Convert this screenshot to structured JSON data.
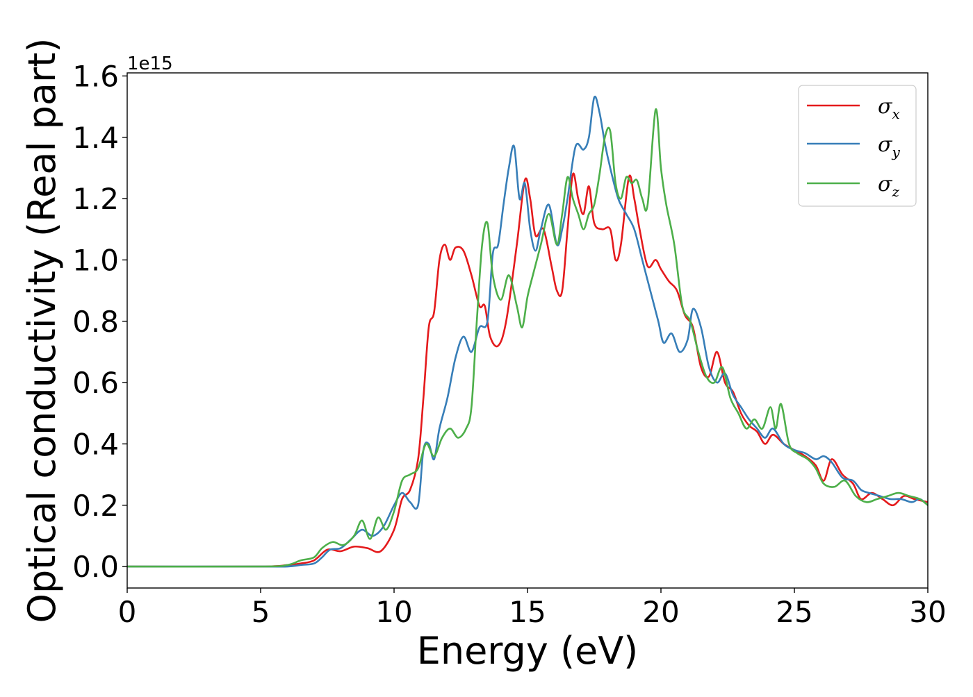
{
  "chart_data": {
    "type": "line",
    "xlabel": "Energy (eV)",
    "ylabel": "Optical conductivity (Real part)",
    "y_offset_text": "1e15",
    "xlim": [
      0,
      30
    ],
    "ylim": [
      -0.07,
      1.61
    ],
    "xticks": [
      0,
      5,
      10,
      15,
      20,
      25,
      30
    ],
    "xtick_labels": [
      "0",
      "5",
      "10",
      "15",
      "20",
      "25",
      "30"
    ],
    "yticks": [
      0.0,
      0.2,
      0.4,
      0.6,
      0.8,
      1.0,
      1.2,
      1.4,
      1.6
    ],
    "ytick_labels": [
      "0.0",
      "0.2",
      "0.4",
      "0.6",
      "0.8",
      "1.0",
      "1.2",
      "1.4",
      "1.6"
    ],
    "grid": false,
    "legend_position": "top-right",
    "series": [
      {
        "name": "σx",
        "symbol": "σ",
        "subscript": "x",
        "color": "#e41a1c",
        "points": [
          [
            0,
            0.0
          ],
          [
            5,
            0.0
          ],
          [
            6,
            0.005
          ],
          [
            6.5,
            0.01
          ],
          [
            7,
            0.02
          ],
          [
            7.5,
            0.055
          ],
          [
            8,
            0.05
          ],
          [
            8.5,
            0.065
          ],
          [
            9,
            0.06
          ],
          [
            9.5,
            0.05
          ],
          [
            10,
            0.12
          ],
          [
            10.3,
            0.22
          ],
          [
            10.6,
            0.25
          ],
          [
            10.9,
            0.35
          ],
          [
            11.1,
            0.55
          ],
          [
            11.3,
            0.78
          ],
          [
            11.5,
            0.83
          ],
          [
            11.7,
            1.0
          ],
          [
            11.9,
            1.05
          ],
          [
            12.1,
            1.0
          ],
          [
            12.3,
            1.04
          ],
          [
            12.6,
            1.03
          ],
          [
            12.9,
            0.95
          ],
          [
            13.2,
            0.85
          ],
          [
            13.4,
            0.85
          ],
          [
            13.6,
            0.75
          ],
          [
            13.9,
            0.72
          ],
          [
            14.2,
            0.8
          ],
          [
            14.6,
            1.05
          ],
          [
            14.9,
            1.26
          ],
          [
            15.1,
            1.2
          ],
          [
            15.3,
            1.08
          ],
          [
            15.6,
            1.1
          ],
          [
            15.9,
            0.98
          ],
          [
            16.1,
            0.9
          ],
          [
            16.3,
            0.9
          ],
          [
            16.5,
            1.1
          ],
          [
            16.7,
            1.28
          ],
          [
            16.9,
            1.2
          ],
          [
            17.1,
            1.15
          ],
          [
            17.3,
            1.24
          ],
          [
            17.5,
            1.12
          ],
          [
            17.8,
            1.1
          ],
          [
            18.1,
            1.1
          ],
          [
            18.3,
            1.0
          ],
          [
            18.5,
            1.05
          ],
          [
            18.8,
            1.27
          ],
          [
            19.0,
            1.2
          ],
          [
            19.2,
            1.1
          ],
          [
            19.5,
            0.98
          ],
          [
            19.8,
            1.0
          ],
          [
            20.0,
            0.97
          ],
          [
            20.3,
            0.93
          ],
          [
            20.6,
            0.9
          ],
          [
            20.9,
            0.82
          ],
          [
            21.2,
            0.78
          ],
          [
            21.5,
            0.65
          ],
          [
            21.8,
            0.62
          ],
          [
            22.1,
            0.7
          ],
          [
            22.4,
            0.6
          ],
          [
            22.7,
            0.57
          ],
          [
            23.0,
            0.5
          ],
          [
            23.3,
            0.46
          ],
          [
            23.6,
            0.44
          ],
          [
            23.9,
            0.4
          ],
          [
            24.2,
            0.43
          ],
          [
            24.6,
            0.4
          ],
          [
            25.0,
            0.38
          ],
          [
            25.4,
            0.36
          ],
          [
            25.8,
            0.33
          ],
          [
            26.1,
            0.28
          ],
          [
            26.4,
            0.35
          ],
          [
            26.8,
            0.3
          ],
          [
            27.2,
            0.27
          ],
          [
            27.5,
            0.22
          ],
          [
            27.9,
            0.24
          ],
          [
            28.3,
            0.22
          ],
          [
            28.7,
            0.2
          ],
          [
            29.1,
            0.23
          ],
          [
            29.5,
            0.22
          ],
          [
            30,
            0.21
          ]
        ]
      },
      {
        "name": "σy",
        "symbol": "σ",
        "subscript": "y",
        "color": "#377eb8",
        "points": [
          [
            0,
            0.0
          ],
          [
            5,
            0.0
          ],
          [
            6,
            0.0
          ],
          [
            6.5,
            0.005
          ],
          [
            7,
            0.01
          ],
          [
            7.3,
            0.03
          ],
          [
            7.6,
            0.055
          ],
          [
            8,
            0.06
          ],
          [
            8.4,
            0.09
          ],
          [
            8.8,
            0.12
          ],
          [
            9.2,
            0.1
          ],
          [
            9.6,
            0.13
          ],
          [
            10.0,
            0.2
          ],
          [
            10.3,
            0.24
          ],
          [
            10.6,
            0.21
          ],
          [
            10.9,
            0.2
          ],
          [
            11.1,
            0.38
          ],
          [
            11.3,
            0.4
          ],
          [
            11.5,
            0.35
          ],
          [
            11.7,
            0.45
          ],
          [
            12.0,
            0.55
          ],
          [
            12.3,
            0.68
          ],
          [
            12.6,
            0.75
          ],
          [
            12.9,
            0.7
          ],
          [
            13.2,
            0.78
          ],
          [
            13.5,
            0.8
          ],
          [
            13.7,
            1.02
          ],
          [
            13.9,
            1.05
          ],
          [
            14.1,
            1.18
          ],
          [
            14.3,
            1.3
          ],
          [
            14.5,
            1.37
          ],
          [
            14.7,
            1.2
          ],
          [
            14.9,
            1.25
          ],
          [
            15.1,
            1.1
          ],
          [
            15.3,
            1.03
          ],
          [
            15.5,
            1.1
          ],
          [
            15.8,
            1.18
          ],
          [
            16.1,
            1.05
          ],
          [
            16.3,
            1.1
          ],
          [
            16.5,
            1.2
          ],
          [
            16.8,
            1.37
          ],
          [
            17.1,
            1.36
          ],
          [
            17.3,
            1.4
          ],
          [
            17.5,
            1.53
          ],
          [
            17.7,
            1.48
          ],
          [
            17.9,
            1.38
          ],
          [
            18.1,
            1.3
          ],
          [
            18.4,
            1.2
          ],
          [
            18.7,
            1.15
          ],
          [
            19.0,
            1.1
          ],
          [
            19.3,
            1.0
          ],
          [
            19.6,
            0.9
          ],
          [
            19.9,
            0.8
          ],
          [
            20.1,
            0.73
          ],
          [
            20.4,
            0.76
          ],
          [
            20.7,
            0.7
          ],
          [
            21.0,
            0.74
          ],
          [
            21.2,
            0.84
          ],
          [
            21.5,
            0.78
          ],
          [
            21.8,
            0.65
          ],
          [
            22.1,
            0.6
          ],
          [
            22.4,
            0.63
          ],
          [
            22.7,
            0.56
          ],
          [
            23.0,
            0.52
          ],
          [
            23.3,
            0.48
          ],
          [
            23.6,
            0.45
          ],
          [
            23.9,
            0.42
          ],
          [
            24.2,
            0.45
          ],
          [
            24.6,
            0.4
          ],
          [
            25.0,
            0.38
          ],
          [
            25.4,
            0.37
          ],
          [
            25.8,
            0.35
          ],
          [
            26.1,
            0.36
          ],
          [
            26.4,
            0.34
          ],
          [
            26.8,
            0.29
          ],
          [
            27.2,
            0.28
          ],
          [
            27.5,
            0.25
          ],
          [
            27.8,
            0.24
          ],
          [
            28.2,
            0.23
          ],
          [
            28.6,
            0.22
          ],
          [
            29.0,
            0.22
          ],
          [
            29.4,
            0.21
          ],
          [
            29.7,
            0.22
          ],
          [
            30,
            0.2
          ]
        ]
      },
      {
        "name": "σz",
        "symbol": "σ",
        "subscript": "z",
        "color": "#4daf4a",
        "points": [
          [
            0,
            0.0
          ],
          [
            5,
            0.0
          ],
          [
            6,
            0.005
          ],
          [
            6.5,
            0.02
          ],
          [
            7,
            0.03
          ],
          [
            7.3,
            0.06
          ],
          [
            7.7,
            0.08
          ],
          [
            8.1,
            0.07
          ],
          [
            8.5,
            0.1
          ],
          [
            8.8,
            0.15
          ],
          [
            9.1,
            0.09
          ],
          [
            9.4,
            0.16
          ],
          [
            9.7,
            0.12
          ],
          [
            10.0,
            0.18
          ],
          [
            10.3,
            0.28
          ],
          [
            10.6,
            0.3
          ],
          [
            10.9,
            0.32
          ],
          [
            11.2,
            0.4
          ],
          [
            11.5,
            0.36
          ],
          [
            11.8,
            0.42
          ],
          [
            12.1,
            0.45
          ],
          [
            12.4,
            0.42
          ],
          [
            12.7,
            0.45
          ],
          [
            12.9,
            0.52
          ],
          [
            13.1,
            0.8
          ],
          [
            13.3,
            1.05
          ],
          [
            13.5,
            1.12
          ],
          [
            13.7,
            0.95
          ],
          [
            14.0,
            0.87
          ],
          [
            14.3,
            0.95
          ],
          [
            14.6,
            0.85
          ],
          [
            14.8,
            0.78
          ],
          [
            15.0,
            0.88
          ],
          [
            15.2,
            0.95
          ],
          [
            15.5,
            1.05
          ],
          [
            15.8,
            1.15
          ],
          [
            16.1,
            1.05
          ],
          [
            16.3,
            1.15
          ],
          [
            16.5,
            1.27
          ],
          [
            16.7,
            1.2
          ],
          [
            16.9,
            1.15
          ],
          [
            17.1,
            1.1
          ],
          [
            17.3,
            1.15
          ],
          [
            17.5,
            1.18
          ],
          [
            17.7,
            1.28
          ],
          [
            17.9,
            1.4
          ],
          [
            18.1,
            1.42
          ],
          [
            18.3,
            1.25
          ],
          [
            18.5,
            1.2
          ],
          [
            18.7,
            1.27
          ],
          [
            18.9,
            1.25
          ],
          [
            19.1,
            1.26
          ],
          [
            19.3,
            1.2
          ],
          [
            19.5,
            1.18
          ],
          [
            19.8,
            1.49
          ],
          [
            20.0,
            1.3
          ],
          [
            20.2,
            1.18
          ],
          [
            20.5,
            1.05
          ],
          [
            20.8,
            0.85
          ],
          [
            21.1,
            0.8
          ],
          [
            21.4,
            0.7
          ],
          [
            21.7,
            0.62
          ],
          [
            22.0,
            0.6
          ],
          [
            22.3,
            0.65
          ],
          [
            22.6,
            0.55
          ],
          [
            22.9,
            0.5
          ],
          [
            23.2,
            0.45
          ],
          [
            23.5,
            0.48
          ],
          [
            23.8,
            0.45
          ],
          [
            24.1,
            0.52
          ],
          [
            24.3,
            0.45
          ],
          [
            24.5,
            0.53
          ],
          [
            24.8,
            0.4
          ],
          [
            25.1,
            0.37
          ],
          [
            25.5,
            0.35
          ],
          [
            25.8,
            0.32
          ],
          [
            26.1,
            0.27
          ],
          [
            26.5,
            0.26
          ],
          [
            26.9,
            0.28
          ],
          [
            27.3,
            0.23
          ],
          [
            27.7,
            0.21
          ],
          [
            28.1,
            0.22
          ],
          [
            28.5,
            0.23
          ],
          [
            28.9,
            0.24
          ],
          [
            29.3,
            0.23
          ],
          [
            29.7,
            0.22
          ],
          [
            30,
            0.2
          ]
        ]
      }
    ]
  }
}
